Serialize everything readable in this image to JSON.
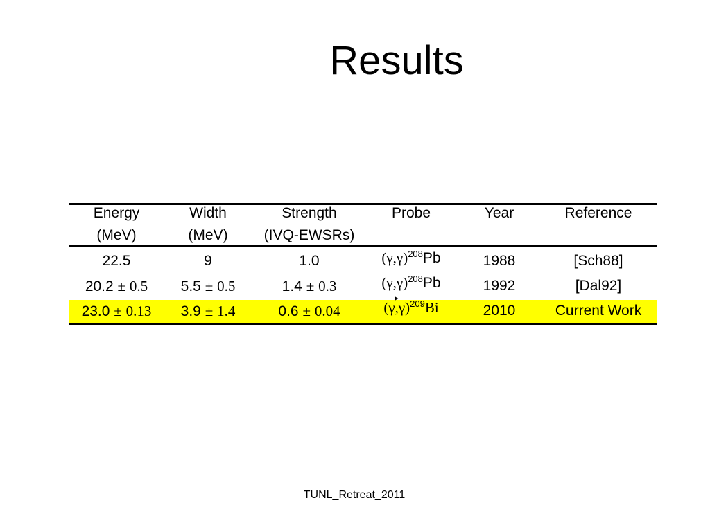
{
  "title": "Results",
  "table": {
    "headers": [
      [
        "Energy",
        "(MeV)"
      ],
      [
        "Width",
        "(MeV)"
      ],
      [
        "Strength",
        "(IVQ-EWSRs)"
      ],
      [
        "Probe"
      ],
      [
        "Year"
      ],
      [
        "Reference"
      ]
    ],
    "rows": [
      {
        "cells": [
          "22.5",
          "9",
          "1.0",
          {
            "reaction": "(γ,γ)",
            "mass": "208",
            "element": "Pb"
          },
          "1988",
          "[Sch88]"
        ]
      },
      {
        "cells": [
          {
            "value": "20.2",
            "sign": "±",
            "error": "0.5"
          },
          {
            "value": "5.5",
            "sign": "±",
            "error": "0.5"
          },
          {
            "value": "1.4",
            "sign": "±",
            "error": "0.3"
          },
          {
            "reaction": "(γ,γ)",
            "mass": "208",
            "element": "Pb"
          },
          "1992",
          "[Dal92]"
        ]
      },
      {
        "highlight": true,
        "cells": [
          {
            "value": "23.0",
            "sign": "±",
            "error": "0.13"
          },
          {
            "value": "3.9",
            "sign": "±",
            "error": "1.4"
          },
          {
            "value": "0.6",
            "sign": "±",
            "error": "0.04"
          },
          {
            "reaction": "(γ,γ)",
            "mass": "209",
            "element": "Bi",
            "polarized": true
          },
          "2010",
          "Current Work"
        ]
      }
    ]
  },
  "footer": "TUNL_Retreat_2011"
}
